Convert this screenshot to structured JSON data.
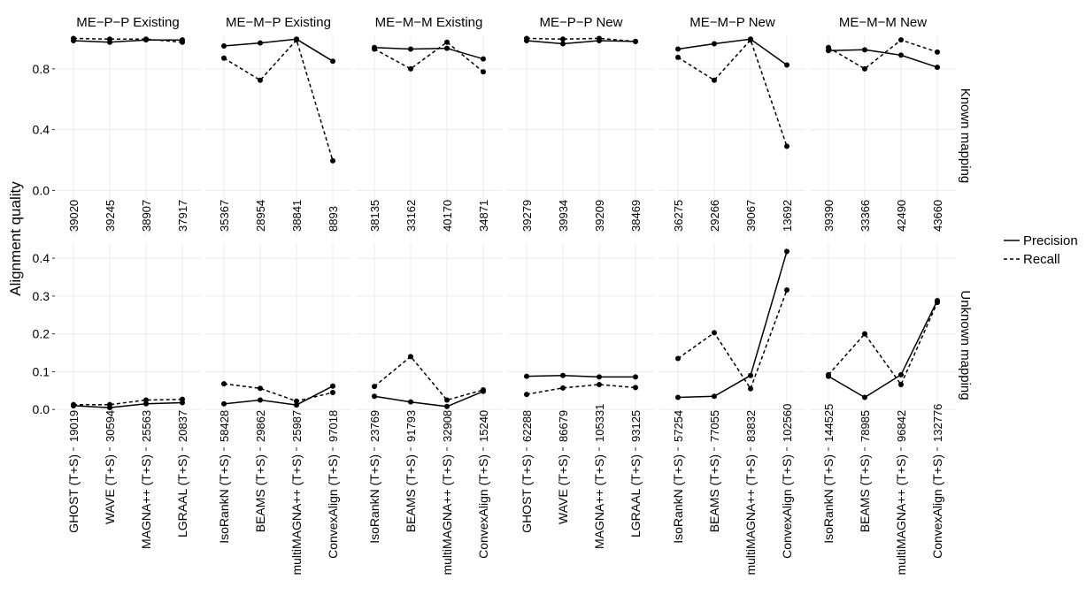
{
  "chart_data": {
    "type": "line",
    "ylabel": "Alignment quality",
    "legend": {
      "placement": "right",
      "entries": [
        "Precision",
        "Recall"
      ]
    },
    "grid": true,
    "columns": [
      {
        "label": "ME−P−P Existing",
        "methods": [
          "GHOST (T+S)",
          "WAVE (T+S)",
          "MAGNA++ (T+S)",
          "LGRAAL (T+S)"
        ]
      },
      {
        "label": "ME−M−P Existing",
        "methods": [
          "IsoRankN (T+S)",
          "BEAMS (T+S)",
          "multiMAGNA++ (T+S)",
          "ConvexAlign (T+S)"
        ]
      },
      {
        "label": "ME−M−M Existing",
        "methods": [
          "IsoRankN (T+S)",
          "BEAMS (T+S)",
          "multiMAGNA++ (T+S)",
          "ConvexAlign (T+S)"
        ]
      },
      {
        "label": "ME−P−P New",
        "methods": [
          "GHOST (T+S)",
          "WAVE (T+S)",
          "MAGNA++ (T+S)",
          "LGRAAL (T+S)"
        ]
      },
      {
        "label": "ME−M−P New",
        "methods": [
          "IsoRankN (T+S)",
          "BEAMS (T+S)",
          "multiMAGNA++ (T+S)",
          "ConvexAlign (T+S)"
        ]
      },
      {
        "label": "ME−M−M New",
        "methods": [
          "IsoRankN (T+S)",
          "BEAMS (T+S)",
          "multiMAGNA++ (T+S)",
          "ConvexAlign (T+S)"
        ]
      }
    ],
    "rows": [
      {
        "label": "Known mapping",
        "ylim": [
          -0.3,
          1.02
        ],
        "yticks": [
          0.0,
          0.4,
          0.8
        ],
        "ytick_labels": [
          "0.0",
          "0.4",
          "0.8"
        ],
        "panels": [
          {
            "precision": [
              0.985,
              0.975,
              0.99,
              0.99
            ],
            "recall": [
              1.0,
              0.995,
              0.995,
              0.975
            ],
            "counts": [
              "39020",
              "39245",
              "38907",
              "37917"
            ]
          },
          {
            "precision": [
              0.95,
              0.97,
              0.995,
              0.85
            ],
            "recall": [
              0.87,
              0.725,
              0.99,
              0.195
            ],
            "counts": [
              "35367",
              "28954",
              "38841",
              "8893"
            ]
          },
          {
            "precision": [
              0.94,
              0.93,
              0.935,
              0.865
            ],
            "recall": [
              0.93,
              0.8,
              0.975,
              0.78
            ],
            "counts": [
              "38135",
              "33162",
              "40170",
              "34871"
            ]
          },
          {
            "precision": [
              0.985,
              0.965,
              0.985,
              0.98
            ],
            "recall": [
              1.0,
              0.995,
              1.0,
              0.98
            ],
            "counts": [
              "39279",
              "39934",
              "39209",
              "38469"
            ]
          },
          {
            "precision": [
              0.93,
              0.965,
              0.995,
              0.825
            ],
            "recall": [
              0.875,
              0.725,
              0.99,
              0.29
            ],
            "counts": [
              "36275",
              "29266",
              "39067",
              "13692"
            ]
          },
          {
            "precision": [
              0.92,
              0.925,
              0.89,
              0.81
            ],
            "recall": [
              0.94,
              0.8,
              0.99,
              0.91
            ],
            "counts": [
              "39390",
              "33366",
              "42490",
              "43660"
            ]
          }
        ]
      },
      {
        "label": "Unknown mapping",
        "ylim": [
          -0.1,
          0.44
        ],
        "yticks": [
          0.0,
          0.1,
          0.2,
          0.3,
          0.4
        ],
        "ytick_labels": [
          "0.0",
          "0.1",
          "0.2",
          "0.3",
          "0.4"
        ],
        "panels": [
          {
            "precision": [
              0.01,
              0.005,
              0.015,
              0.018
            ],
            "recall": [
              0.013,
              0.013,
              0.025,
              0.027
            ],
            "counts": [
              "19019",
              "30594",
              "25563",
              "20837"
            ]
          },
          {
            "precision": [
              0.015,
              0.025,
              0.012,
              0.062
            ],
            "recall": [
              0.068,
              0.056,
              0.022,
              0.045
            ],
            "counts": [
              "58428",
              "29862",
              "25987",
              "97018"
            ]
          },
          {
            "precision": [
              0.035,
              0.02,
              0.008,
              0.048
            ],
            "recall": [
              0.061,
              0.14,
              0.025,
              0.052
            ],
            "counts": [
              "23769",
              "91793",
              "32908",
              "15240"
            ]
          },
          {
            "precision": [
              0.088,
              0.09,
              0.086,
              0.086
            ],
            "recall": [
              0.04,
              0.057,
              0.066,
              0.058
            ],
            "counts": [
              "62288",
              "86679",
              "105331",
              "93125"
            ]
          },
          {
            "precision": [
              0.032,
              0.035,
              0.09,
              0.418
            ],
            "recall": [
              0.135,
              0.203,
              0.055,
              0.316
            ],
            "counts": [
              "57254",
              "77055",
              "83832",
              "102560"
            ]
          },
          {
            "precision": [
              0.088,
              0.032,
              0.092,
              0.288
            ],
            "recall": [
              0.092,
              0.2,
              0.066,
              0.283
            ],
            "counts": [
              "144525",
              "78985",
              "96842",
              "132776"
            ]
          }
        ]
      }
    ]
  }
}
